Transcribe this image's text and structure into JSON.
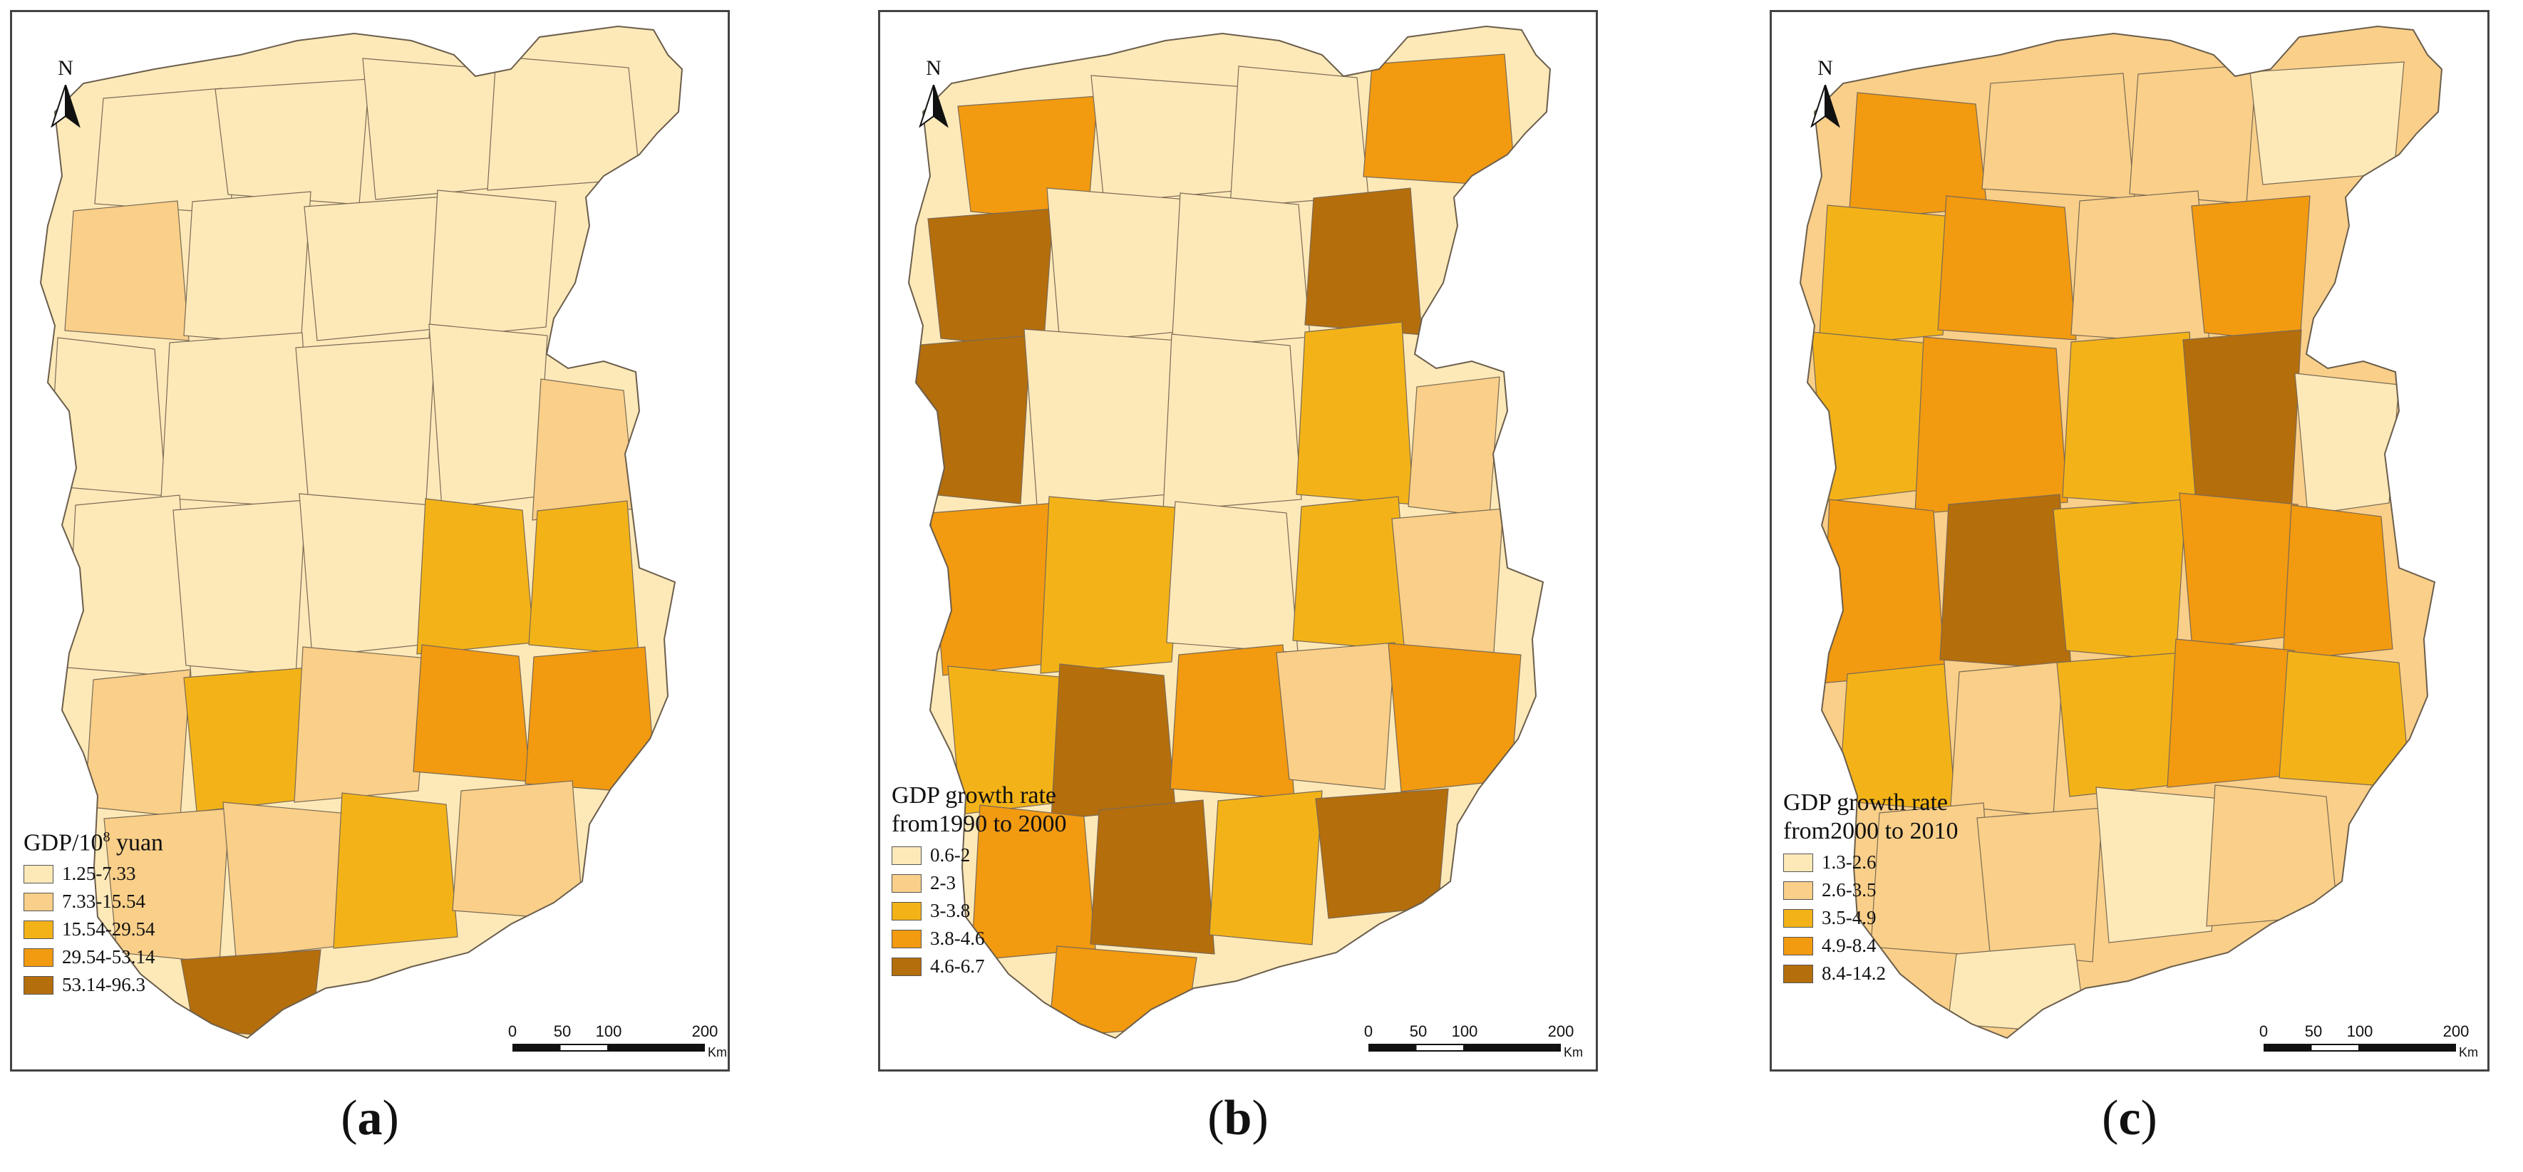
{
  "north_label": "N",
  "scale": {
    "ticks": [
      "0",
      "50",
      "100",
      "200"
    ],
    "unit": "Km"
  },
  "colors": [
    "#fde9b8",
    "#f9cf89",
    "#f3b318",
    "#f29a10",
    "#b56e0c"
  ],
  "panels": [
    {
      "id": "a",
      "caption_open": "(",
      "caption_letter": "a",
      "caption_close": ")",
      "legend_title_pre": "GDP/10",
      "legend_title_sup": "8",
      "legend_title_post": " yuan",
      "legend_title_line2": "",
      "classes": [
        "1.25-7.33",
        "7.33-15.54",
        "15.54-29.54",
        "29.54-53.14",
        "53.14-96.3"
      ]
    },
    {
      "id": "b",
      "caption_open": "(",
      "caption_letter": "b",
      "caption_close": ")",
      "legend_title_pre": "GDP growth rate",
      "legend_title_sup": "",
      "legend_title_post": "",
      "legend_title_line2": "from1990 to 2000",
      "classes": [
        "0.6-2",
        "2-3",
        "3-3.8",
        "3.8-4.6",
        "4.6-6.7"
      ]
    },
    {
      "id": "c",
      "caption_open": "(",
      "caption_letter": "c",
      "caption_close": ")",
      "legend_title_pre": "GDP growth rate",
      "legend_title_sup": "",
      "legend_title_post": "",
      "legend_title_line2": "from2000 to 2010",
      "classes": [
        "1.3-2.6",
        "2.6-3.5",
        "3.5-4.9",
        "4.9-8.4",
        "8.4-14.2"
      ]
    }
  ]
}
